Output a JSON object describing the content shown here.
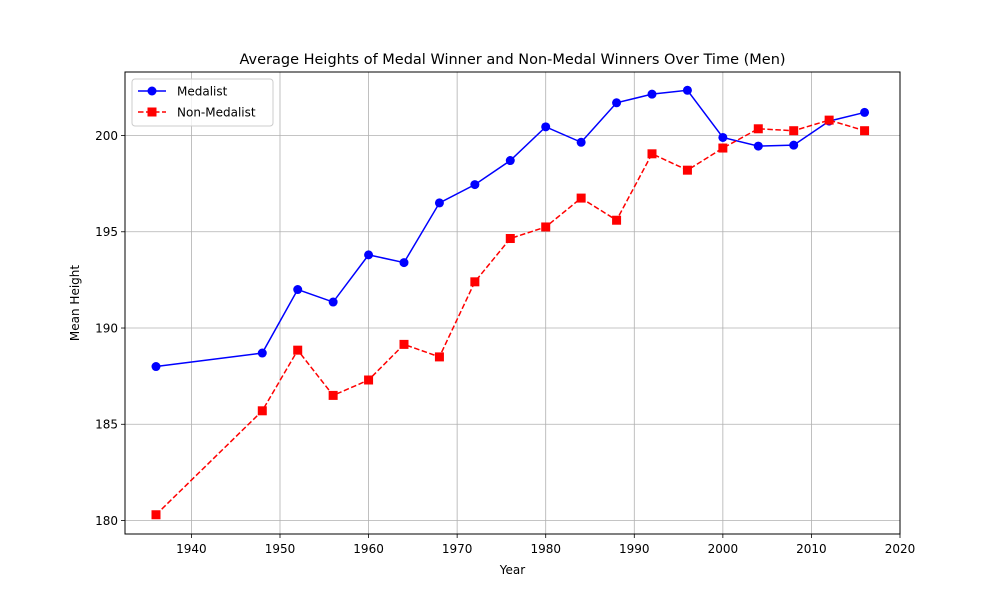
{
  "chart_data": {
    "type": "line",
    "title": "Average Heights of Medal Winner and Non-Medal Winners Over Time (Men)",
    "xlabel": "Year",
    "ylabel": "Mean Height",
    "xlim": [
      1932.5,
      2020
    ],
    "ylim": [
      179.3,
      203.3
    ],
    "xticks": [
      1940,
      1950,
      1960,
      1970,
      1980,
      1990,
      2000,
      2010,
      2020
    ],
    "yticks": [
      180,
      185,
      190,
      195,
      200
    ],
    "grid": true,
    "legend_position": "top-left",
    "x": [
      1936,
      1948,
      1952,
      1956,
      1960,
      1964,
      1968,
      1972,
      1976,
      1980,
      1984,
      1988,
      1992,
      1996,
      2000,
      2004,
      2008,
      2012,
      2016
    ],
    "series": [
      {
        "name": "Medalist",
        "color": "#0000ff",
        "marker": "circle",
        "linestyle": "solid",
        "values": [
          188.0,
          188.7,
          192.0,
          191.35,
          193.8,
          193.4,
          196.5,
          197.45,
          198.7,
          200.45,
          199.65,
          201.7,
          202.15,
          202.35,
          199.9,
          199.45,
          199.5,
          200.75,
          201.2
        ]
      },
      {
        "name": "Non-Medalist",
        "color": "#ff0000",
        "marker": "square",
        "linestyle": "dashed",
        "values": [
          180.3,
          185.7,
          188.85,
          186.5,
          187.3,
          189.15,
          188.5,
          192.4,
          194.65,
          195.25,
          196.75,
          195.6,
          199.05,
          198.2,
          199.35,
          200.35,
          200.25,
          200.8,
          200.25
        ]
      }
    ]
  }
}
